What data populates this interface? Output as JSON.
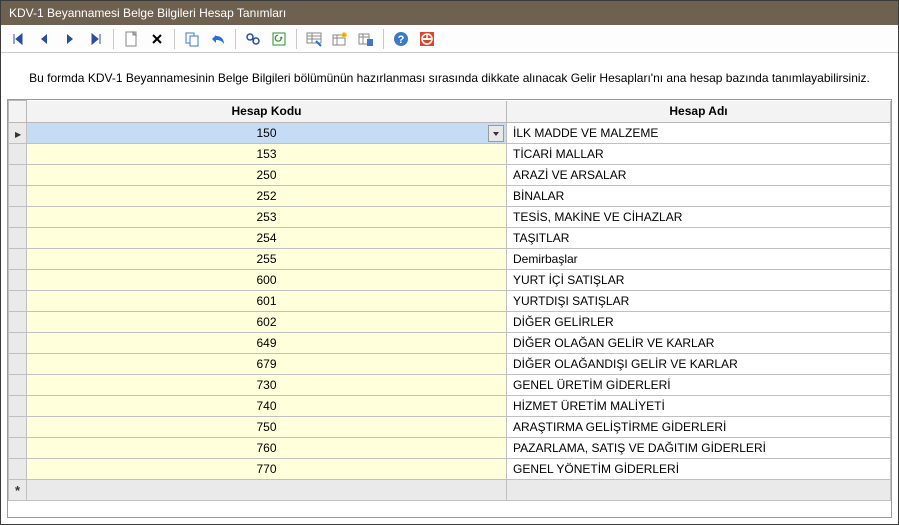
{
  "window": {
    "title": "KDV-1 Beyannamesi Belge Bilgileri Hesap Tanımları"
  },
  "description": "Bu formda KDV-1 Beyannamesinin Belge Bilgileri bölümünün hazırlanması sırasında dikkate alınacak Gelir Hesapları'nı ana hesap bazında tanımlayabilirsiniz.",
  "columns": {
    "kodu": "Hesap Kodu",
    "adi": "Hesap Adı"
  },
  "rows": [
    {
      "kodu": "150",
      "adi": "İLK MADDE VE MALZEME",
      "selected": true
    },
    {
      "kodu": "153",
      "adi": "TİCARİ MALLAR"
    },
    {
      "kodu": "250",
      "adi": "ARAZİ VE ARSALAR"
    },
    {
      "kodu": "252",
      "adi": "BİNALAR"
    },
    {
      "kodu": "253",
      "adi": "TESİS, MAKİNE VE CİHAZLAR"
    },
    {
      "kodu": "254",
      "adi": "TAŞITLAR"
    },
    {
      "kodu": "255",
      "adi": "Demirbaşlar"
    },
    {
      "kodu": "600",
      "adi": "YURT İÇİ SATIŞLAR"
    },
    {
      "kodu": "601",
      "adi": "YURTDIŞI SATIŞLAR"
    },
    {
      "kodu": "602",
      "adi": "DİĞER GELİRLER"
    },
    {
      "kodu": "649",
      "adi": "DİĞER OLAĞAN GELİR VE KARLAR"
    },
    {
      "kodu": "679",
      "adi": "DİĞER OLAĞANDIŞI GELİR VE KARLAR"
    },
    {
      "kodu": "730",
      "adi": "GENEL ÜRETİM GİDERLERİ"
    },
    {
      "kodu": "740",
      "adi": "HİZMET ÜRETİM MALİYETİ"
    },
    {
      "kodu": "750",
      "adi": "ARAŞTIRMA GELİŞTİRME GİDERLERİ"
    },
    {
      "kodu": "760",
      "adi": "PAZARLAMA, SATIŞ VE DAĞITIM GİDERLERİ"
    },
    {
      "kodu": "770",
      "adi": "GENEL YÖNETİM GİDERLERİ"
    }
  ],
  "colors": {
    "titlebar": "#6f6150",
    "row_kodu_bg": "#ffffdc",
    "row_sel_bg": "#c6dcf5"
  }
}
